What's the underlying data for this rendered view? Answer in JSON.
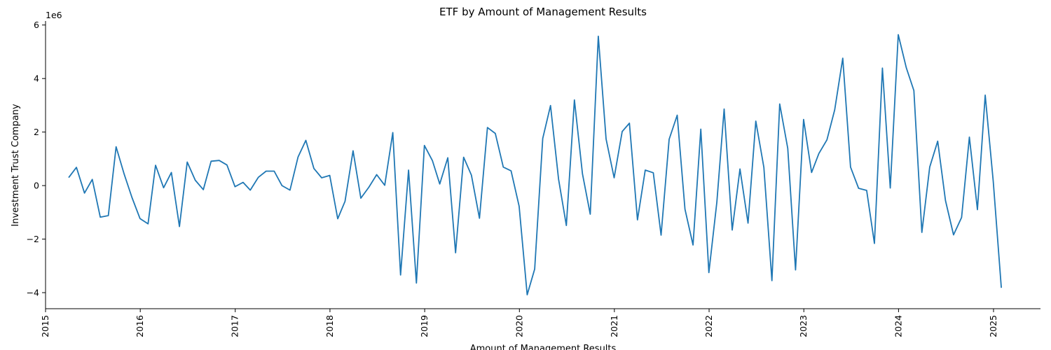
{
  "chart_data": {
    "type": "line",
    "title": "ETF by Amount of Management Results",
    "xlabel": "Amount of Management Results",
    "ylabel": "Investment Trust Company",
    "y_offset_label": "1e6",
    "y_scale": 1000000,
    "line_color": "#1f77b4",
    "grid": false,
    "legend": "none",
    "xlim": [
      "2015-01-01",
      "2025-07-01"
    ],
    "ylim": [
      -4600000,
      6150000
    ],
    "x_ticks": [
      {
        "date": "2015-01-01",
        "label": "2015"
      },
      {
        "date": "2016-01-01",
        "label": "2016"
      },
      {
        "date": "2017-01-01",
        "label": "2017"
      },
      {
        "date": "2018-01-01",
        "label": "2018"
      },
      {
        "date": "2019-01-01",
        "label": "2019"
      },
      {
        "date": "2020-01-01",
        "label": "2020"
      },
      {
        "date": "2021-01-01",
        "label": "2021"
      },
      {
        "date": "2022-01-01",
        "label": "2022"
      },
      {
        "date": "2023-01-01",
        "label": "2023"
      },
      {
        "date": "2024-01-01",
        "label": "2024"
      },
      {
        "date": "2025-01-01",
        "label": "2025"
      }
    ],
    "y_ticks": [
      {
        "value": -4000000,
        "label": "−4"
      },
      {
        "value": -2000000,
        "label": "−2"
      },
      {
        "value": 0,
        "label": "0"
      },
      {
        "value": 2000000,
        "label": "2"
      },
      {
        "value": 4000000,
        "label": "4"
      },
      {
        "value": 6000000,
        "label": "6"
      }
    ],
    "series": [
      {
        "x": [
          "2015-03-31",
          "2015-04-30",
          "2015-05-31",
          "2015-06-30",
          "2015-07-31",
          "2015-08-31",
          "2015-09-30",
          "2015-10-31",
          "2015-11-30",
          "2015-12-31",
          "2016-01-31",
          "2016-02-29",
          "2016-03-31",
          "2016-04-30",
          "2016-05-31",
          "2016-06-30",
          "2016-07-31",
          "2016-08-31",
          "2016-09-30",
          "2016-10-31",
          "2016-11-30",
          "2016-12-31",
          "2017-01-31",
          "2017-02-28",
          "2017-03-31",
          "2017-04-30",
          "2017-05-31",
          "2017-06-30",
          "2017-07-31",
          "2017-08-31",
          "2017-09-30",
          "2017-10-31",
          "2017-11-30",
          "2017-12-31",
          "2018-01-31",
          "2018-02-28",
          "2018-03-31",
          "2018-04-30",
          "2018-05-31",
          "2018-06-30",
          "2018-07-31",
          "2018-08-31",
          "2018-09-30",
          "2018-10-31",
          "2018-11-30",
          "2018-12-31",
          "2019-01-31",
          "2019-02-28",
          "2019-03-31",
          "2019-04-30",
          "2019-05-31",
          "2019-06-30",
          "2019-07-31",
          "2019-08-31",
          "2019-09-30",
          "2019-10-31",
          "2019-11-30",
          "2019-12-31",
          "2020-01-31",
          "2020-02-29",
          "2020-03-31",
          "2020-04-30",
          "2020-05-31",
          "2020-06-30",
          "2020-07-31",
          "2020-08-31",
          "2020-09-30",
          "2020-10-31",
          "2020-11-30",
          "2020-12-31",
          "2021-01-31",
          "2021-02-28",
          "2021-03-31",
          "2021-04-30",
          "2021-05-31",
          "2021-06-30",
          "2021-07-31",
          "2021-08-31",
          "2021-09-30",
          "2021-10-31",
          "2021-11-30",
          "2021-12-31",
          "2022-01-31",
          "2022-02-28",
          "2022-03-31",
          "2022-04-30",
          "2022-05-31",
          "2022-06-30",
          "2022-07-31",
          "2022-08-31",
          "2022-09-30",
          "2022-10-31",
          "2022-11-30",
          "2022-12-31",
          "2023-01-31",
          "2023-02-28",
          "2023-03-31",
          "2023-04-30",
          "2023-05-31",
          "2023-06-30",
          "2023-07-31",
          "2023-08-31",
          "2023-09-30",
          "2023-10-31",
          "2023-11-30",
          "2023-12-31",
          "2024-01-31",
          "2024-02-29",
          "2024-03-31",
          "2024-04-30",
          "2024-05-31",
          "2024-06-30",
          "2024-07-31",
          "2024-08-31",
          "2024-09-30",
          "2024-10-31",
          "2024-11-30",
          "2024-12-31",
          "2025-01-31"
        ],
        "y": [
          300000,
          680000,
          -280000,
          230000,
          -1180000,
          -1120000,
          1450000,
          430000,
          -440000,
          -1230000,
          -1430000,
          760000,
          -80000,
          490000,
          -1530000,
          880000,
          200000,
          -150000,
          910000,
          940000,
          770000,
          -40000,
          120000,
          -170000,
          310000,
          540000,
          540000,
          0,
          -170000,
          1070000,
          1690000,
          640000,
          290000,
          380000,
          -1240000,
          -590000,
          1300000,
          -470000,
          -60000,
          410000,
          10000,
          1980000,
          -3340000,
          580000,
          -3640000,
          1500000,
          930000,
          60000,
          1040000,
          -2510000,
          1060000,
          390000,
          -1220000,
          2170000,
          1950000,
          690000,
          550000,
          -770000,
          -4080000,
          -3120000,
          1760000,
          2990000,
          240000,
          -1490000,
          3200000,
          440000,
          -1070000,
          5580000,
          1740000,
          290000,
          2020000,
          2330000,
          -1280000,
          580000,
          480000,
          -1850000,
          1730000,
          2630000,
          -880000,
          -2220000,
          2110000,
          -3250000,
          -620000,
          2860000,
          -1660000,
          620000,
          -1400000,
          2410000,
          680000,
          -3550000,
          3050000,
          1390000,
          -3150000,
          2470000,
          490000,
          1200000,
          1710000,
          2830000,
          4760000,
          690000,
          -100000,
          -180000,
          -2160000,
          4390000,
          -90000,
          5640000,
          4400000,
          3550000,
          -1750000,
          690000,
          1660000,
          -560000,
          -1840000,
          -1190000,
          1810000,
          -900000,
          3380000,
          150000,
          -3820000
        ]
      }
    ]
  }
}
